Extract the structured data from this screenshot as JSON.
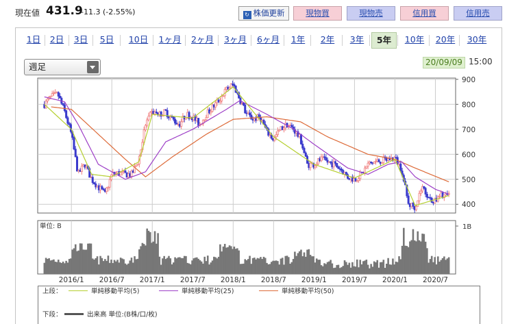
{
  "quote": {
    "label": "現在値",
    "value": "431.9",
    "change": "-11.3 (-2.55%)"
  },
  "buttons": {
    "refresh": "株価更新",
    "spot_buy": "現物買",
    "spot_sell": "現物売",
    "margin_buy": "信用買",
    "margin_sell": "信用売"
  },
  "periods": [
    "1日",
    "2日",
    "3日",
    "5日",
    "10日",
    "1ヶ月",
    "2ヶ月",
    "3ヶ月",
    "6ヶ月",
    "1年",
    "2年",
    "3年",
    "5年",
    "10年",
    "20年",
    "30年"
  ],
  "active_period": "5年",
  "interval_select": {
    "value": "週足"
  },
  "timestamp": {
    "date": "20/09/09",
    "time": "15:00"
  },
  "colors": {
    "up": "#f08080",
    "down": "#3a3acc",
    "ma5": "#b5cf2f",
    "ma25": "#9d3fc7",
    "ma50": "#dd6a38",
    "volume": "#777777",
    "grid": "#cccccc"
  },
  "chart_data": [
    {
      "type": "candlestick",
      "panel": "price",
      "x_ticks": [
        "2016/1",
        "2016/7",
        "2017/1",
        "2017/7",
        "2018/1",
        "2018/7",
        "2019/1",
        "2019/7",
        "2020/1",
        "2020/7"
      ],
      "y_ticks": [
        400,
        500,
        600,
        700,
        800,
        900
      ],
      "ylim": [
        365,
        905
      ],
      "price_path": [
        [
          "2015/9",
          800
        ],
        [
          "2015/10",
          830
        ],
        [
          "2015/11",
          840
        ],
        [
          "2015/12",
          770
        ],
        [
          "2016/1",
          680
        ],
        [
          "2016/2",
          520
        ],
        [
          "2016/3",
          560
        ],
        [
          "2016/4",
          500
        ],
        [
          "2016/5",
          470
        ],
        [
          "2016/6",
          440
        ],
        [
          "2016/7",
          520
        ],
        [
          "2016/8",
          525
        ],
        [
          "2016/9",
          520
        ],
        [
          "2016/10",
          520
        ],
        [
          "2016/11",
          580
        ],
        [
          "2016/12",
          720
        ],
        [
          "2017/1",
          770
        ],
        [
          "2017/2",
          760
        ],
        [
          "2017/3",
          770
        ],
        [
          "2017/4",
          740
        ],
        [
          "2017/5",
          720
        ],
        [
          "2017/6",
          760
        ],
        [
          "2017/7",
          750
        ],
        [
          "2017/8",
          720
        ],
        [
          "2017/9",
          760
        ],
        [
          "2017/10",
          790
        ],
        [
          "2017/11",
          820
        ],
        [
          "2017/12",
          860
        ],
        [
          "2018/1",
          880
        ],
        [
          "2018/2",
          820
        ],
        [
          "2018/3",
          760
        ],
        [
          "2018/4",
          740
        ],
        [
          "2018/5",
          750
        ],
        [
          "2018/6",
          690
        ],
        [
          "2018/7",
          660
        ],
        [
          "2018/8",
          700
        ],
        [
          "2018/9",
          720
        ],
        [
          "2018/10",
          700
        ],
        [
          "2018/11",
          660
        ],
        [
          "2018/12",
          560
        ],
        [
          "2019/1",
          560
        ],
        [
          "2019/2",
          580
        ],
        [
          "2019/3",
          570
        ],
        [
          "2019/4",
          560
        ],
        [
          "2019/5",
          540
        ],
        [
          "2019/6",
          510
        ],
        [
          "2019/7",
          500
        ],
        [
          "2019/8",
          520
        ],
        [
          "2019/9",
          560
        ],
        [
          "2019/10",
          570
        ],
        [
          "2019/11",
          575
        ],
        [
          "2019/12",
          580
        ],
        [
          "2020/1",
          585
        ],
        [
          "2020/2",
          540
        ],
        [
          "2020/3",
          400
        ],
        [
          "2020/4",
          390
        ],
        [
          "2020/5",
          470
        ],
        [
          "2020/6",
          430
        ],
        [
          "2020/7",
          410
        ],
        [
          "2020/8",
          440
        ],
        [
          "2020/9",
          432
        ]
      ],
      "ma5": [
        [
          "2015/9",
          800
        ],
        [
          "2016/1",
          700
        ],
        [
          "2016/4",
          520
        ],
        [
          "2016/7",
          510
        ],
        [
          "2016/11",
          570
        ],
        [
          "2017/1",
          760
        ],
        [
          "2017/7",
          745
        ],
        [
          "2018/1",
          870
        ],
        [
          "2018/7",
          670
        ],
        [
          "2019/1",
          560
        ],
        [
          "2019/7",
          505
        ],
        [
          "2020/1",
          580
        ],
        [
          "2020/4",
          395
        ],
        [
          "2020/9",
          435
        ]
      ],
      "ma25": [
        [
          "2015/9",
          830
        ],
        [
          "2015/12",
          810
        ],
        [
          "2016/2",
          720
        ],
        [
          "2016/5",
          560
        ],
        [
          "2016/9",
          500
        ],
        [
          "2016/12",
          530
        ],
        [
          "2017/3",
          650
        ],
        [
          "2017/7",
          700
        ],
        [
          "2017/12",
          780
        ],
        [
          "2018/2",
          815
        ],
        [
          "2018/6",
          760
        ],
        [
          "2018/10",
          700
        ],
        [
          "2019/1",
          640
        ],
        [
          "2019/6",
          545
        ],
        [
          "2019/9",
          520
        ],
        [
          "2019/12",
          560
        ],
        [
          "2020/2",
          570
        ],
        [
          "2020/4",
          510
        ],
        [
          "2020/7",
          460
        ],
        [
          "2020/9",
          440
        ]
      ],
      "ma50": [
        [
          "2015/10",
          790
        ],
        [
          "2016/1",
          780
        ],
        [
          "2016/5",
          680
        ],
        [
          "2016/9",
          580
        ],
        [
          "2016/12",
          510
        ],
        [
          "2017/4",
          590
        ],
        [
          "2017/9",
          680
        ],
        [
          "2018/1",
          740
        ],
        [
          "2018/6",
          750
        ],
        [
          "2018/11",
          730
        ],
        [
          "2019/3",
          670
        ],
        [
          "2019/9",
          600
        ],
        [
          "2020/1",
          580
        ],
        [
          "2020/4",
          545
        ],
        [
          "2020/9",
          490
        ]
      ]
    },
    {
      "type": "bar",
      "panel": "volume",
      "unit_label": "単位: B",
      "y_tick": "1B",
      "series_name": "出来高"
    }
  ],
  "legend": {
    "upper": {
      "label": "上段：",
      "items": [
        "単純移動平均(5)",
        "単純移動平均(25)",
        "単純移動平均(50)"
      ]
    },
    "lower": {
      "label": "下段：",
      "item": "出来高 単位:(B株/口/枚)"
    }
  }
}
